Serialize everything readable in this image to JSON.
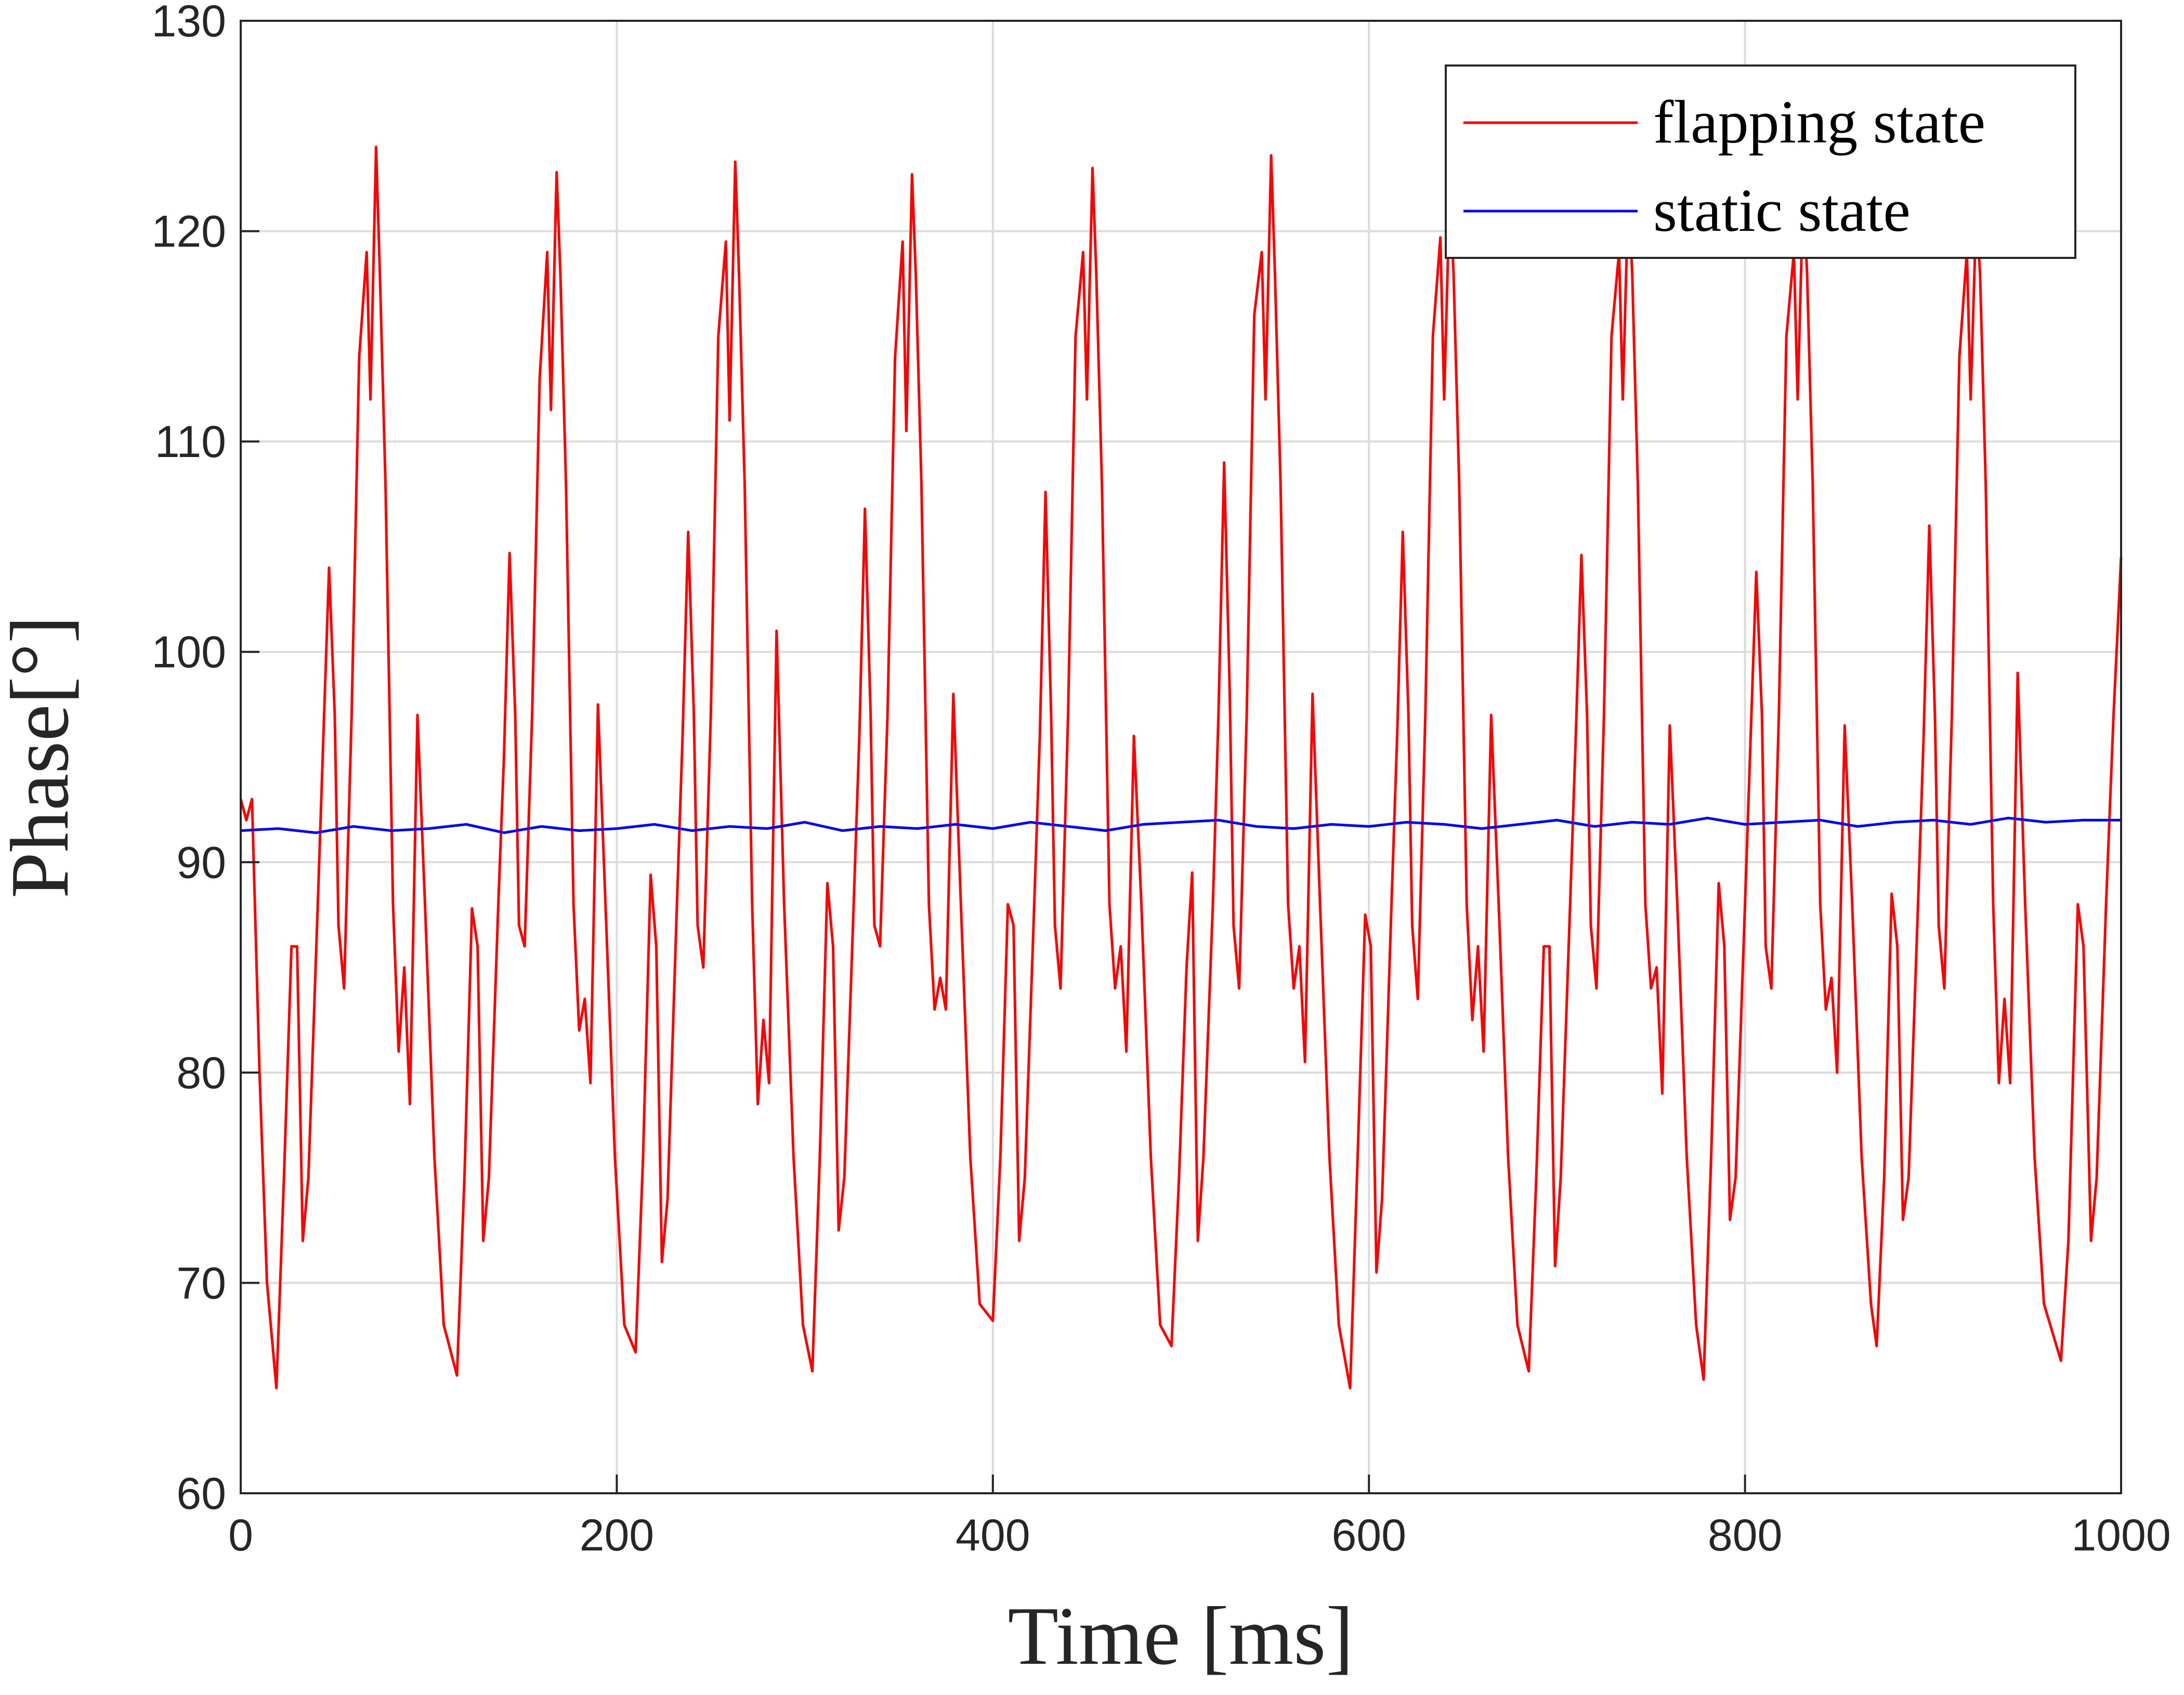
{
  "chart_data": {
    "type": "line",
    "xlabel": "Time [ms]",
    "ylabel": "Phase[°]",
    "xlim": [
      0,
      1000
    ],
    "ylim": [
      60,
      130
    ],
    "xticks": [
      0,
      200,
      400,
      600,
      800,
      1000
    ],
    "yticks": [
      60,
      70,
      80,
      90,
      100,
      110,
      120,
      130
    ],
    "grid": true,
    "legend": "upper right",
    "series": [
      {
        "name": "flapping state",
        "color": "#ff0000",
        "x": [
          0,
          3,
          6,
          10,
          14,
          19,
          23,
          27,
          30,
          33,
          36,
          41,
          44,
          47,
          50,
          52,
          55,
          59,
          63,
          67,
          69,
          72,
          74,
          77,
          81,
          84,
          87,
          90,
          94,
          98,
          103,
          108,
          115,
          119,
          123,
          126,
          129,
          132,
          137,
          140,
          143,
          146,
          148,
          151,
          155,
          159,
          163,
          165,
          168,
          170,
          173,
          177,
          180,
          183,
          186,
          190,
          194,
          199,
          204,
          210,
          214,
          218,
          221,
          224,
          227,
          232,
          235,
          238,
          241,
          243,
          246,
          250,
          254,
          258,
          260,
          263,
          265,
          268,
          272,
          275,
          278,
          281,
          285,
          289,
          294,
          299,
          304,
          308,
          312,
          315,
          318,
          321,
          326,
          329,
          332,
          335,
          337,
          340,
          344,
          348,
          352,
          354,
          357,
          359,
          362,
          366,
          369,
          372,
          375,
          379,
          383,
          388,
          393,
          400,
          404,
          408,
          411,
          414,
          417,
          422,
          425,
          428,
          431,
          433,
          436,
          440,
          444,
          448,
          450,
          453,
          455,
          458,
          462,
          465,
          468,
          471,
          475,
          479,
          484,
          489,
          495,
          499,
          503,
          506,
          509,
          512,
          517,
          520,
          523,
          526,
          528,
          531,
          535,
          539,
          543,
          545,
          548,
          550,
          553,
          557,
          560,
          563,
          566,
          570,
          574,
          579,
          584,
          590,
          594,
          598,
          601,
          604,
          607,
          612,
          615,
          618,
          621,
          623,
          626,
          630,
          634,
          638,
          640,
          643,
          645,
          648,
          652,
          655,
          658,
          661,
          665,
          669,
          674,
          679,
          685,
          689,
          693,
          696,
          699,
          702,
          707,
          710,
          713,
          716,
          718,
          721,
          725,
          729,
          733,
          735,
          738,
          740,
          743,
          747,
          750,
          753,
          756,
          760,
          764,
          769,
          774,
          778,
          782,
          786,
          789,
          792,
          795,
          800,
          803,
          806,
          809,
          811,
          814,
          818,
          822,
          826,
          828,
          831,
          833,
          836,
          840,
          843,
          846,
          849,
          853,
          857,
          862,
          867,
          870,
          874,
          878,
          881,
          884,
          887,
          892,
          895,
          898,
          901,
          903,
          906,
          910,
          914,
          918,
          920,
          923,
          925,
          928,
          932,
          935,
          938,
          941,
          945,
          949,
          954,
          959,
          968,
          972,
          977,
          980,
          984,
          987,
          992,
          996,
          1000
        ],
        "values": [
          93,
          92,
          93,
          80,
          70,
          65,
          75,
          86,
          86,
          72,
          75,
          88,
          96,
          104,
          97,
          87,
          84,
          97,
          114,
          119,
          112,
          124,
          118,
          108,
          88,
          81,
          85,
          78.5,
          97,
          88,
          76,
          68,
          65.6,
          75,
          87.8,
          86,
          72,
          75,
          88,
          95,
          104.7,
          97,
          87,
          86,
          97,
          113,
          119,
          111.5,
          122.8,
          118,
          108,
          88,
          82,
          83.5,
          79.5,
          97.5,
          88,
          76,
          68,
          66.7,
          76,
          89.4,
          86,
          71,
          74,
          88,
          96,
          105.7,
          97,
          87,
          85,
          97,
          115,
          119.5,
          111,
          123.3,
          118,
          108,
          88,
          78.5,
          82.5,
          79.5,
          101,
          88,
          76,
          68,
          65.8,
          76,
          89,
          86,
          72.5,
          75,
          88,
          96,
          106.8,
          97,
          87,
          86,
          97,
          114,
          119.5,
          110.5,
          122.7,
          118,
          108,
          88,
          83,
          84.5,
          83,
          98,
          88,
          76,
          69,
          68.2,
          76,
          88,
          87,
          72,
          75,
          88,
          96,
          107.6,
          97,
          87,
          84,
          97,
          115,
          119,
          112,
          123,
          118,
          108,
          88,
          84,
          86,
          81,
          96,
          88,
          76,
          68,
          67,
          75,
          85,
          89.5,
          72,
          76,
          88,
          97,
          109,
          98,
          87,
          84,
          97,
          116,
          119,
          112,
          123.6,
          118,
          108,
          88,
          84,
          86,
          80.5,
          98,
          88,
          76,
          68,
          65,
          76,
          87.5,
          86,
          70.5,
          74,
          88,
          96,
          105.7,
          97,
          87,
          83.5,
          97,
          115,
          119.7,
          112,
          122,
          118,
          108,
          88,
          82.5,
          86,
          81,
          97,
          88,
          76,
          68,
          65.8,
          75,
          86,
          86,
          70.8,
          75,
          88,
          96,
          104.6,
          97,
          87,
          84,
          97,
          115,
          119,
          112,
          122,
          118,
          108,
          88,
          84,
          85,
          79,
          96.5,
          88,
          76,
          68,
          65.4,
          76,
          89,
          86,
          73,
          75,
          88,
          96,
          103.8,
          97,
          86,
          84,
          97,
          115,
          119,
          112,
          122,
          118,
          108,
          88,
          83,
          84.5,
          80,
          96.5,
          88,
          76,
          69,
          67,
          75,
          88.5,
          86,
          73,
          75,
          88,
          96,
          106,
          97,
          87,
          84,
          97,
          114,
          119,
          112,
          121,
          118,
          108,
          88,
          79.5,
          83.5,
          79.5,
          99,
          88,
          76,
          69,
          66.3,
          72,
          88,
          86,
          72,
          75,
          88,
          97,
          104.5
        ]
      },
      {
        "name": "static state",
        "color": "#0000ff",
        "x": [
          0,
          20,
          40,
          60,
          80,
          100,
          120,
          140,
          160,
          180,
          200,
          220,
          240,
          260,
          280,
          300,
          320,
          340,
          360,
          380,
          400,
          420,
          440,
          460,
          480,
          500,
          520,
          540,
          560,
          580,
          600,
          620,
          640,
          660,
          680,
          700,
          720,
          740,
          760,
          780,
          800,
          820,
          840,
          860,
          880,
          900,
          920,
          940,
          960,
          980,
          1000
        ],
        "values": [
          91.5,
          91.6,
          91.4,
          91.7,
          91.5,
          91.6,
          91.8,
          91.4,
          91.7,
          91.5,
          91.6,
          91.8,
          91.5,
          91.7,
          91.6,
          91.9,
          91.5,
          91.7,
          91.6,
          91.8,
          91.6,
          91.9,
          91.7,
          91.5,
          91.8,
          91.9,
          92,
          91.7,
          91.6,
          91.8,
          91.7,
          91.9,
          91.8,
          91.6,
          91.8,
          92,
          91.7,
          91.9,
          91.8,
          92.1,
          91.8,
          91.9,
          92,
          91.7,
          91.9,
          92,
          91.8,
          92.1,
          91.9,
          92,
          92
        ]
      }
    ]
  }
}
